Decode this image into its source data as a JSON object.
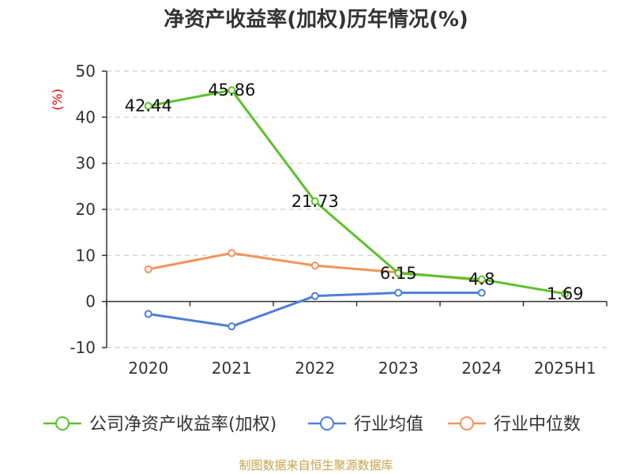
{
  "chart_data": {
    "type": "line",
    "title": "净资产收益率(加权)历年情况(%)",
    "ylabel": "(%)",
    "categories": [
      "2020",
      "2021",
      "2022",
      "2023",
      "2024",
      "2025H1"
    ],
    "ylim": [
      -10,
      50
    ],
    "yticks": [
      -10,
      0,
      10,
      20,
      30,
      40,
      50
    ],
    "grid": true,
    "legend_position": "bottom",
    "series": [
      {
        "name": "公司净资产收益率(加权)",
        "color": "#5cc12a",
        "values": [
          42.44,
          45.86,
          21.73,
          6.15,
          4.8,
          1.69
        ],
        "labels": [
          "42.44",
          "45.86",
          "21.73",
          "6.15",
          "4.8",
          "1.69"
        ]
      },
      {
        "name": "行业均值",
        "color": "#4d7fd9",
        "values": [
          -2.7,
          -5.4,
          1.2,
          1.9,
          1.9,
          null
        ]
      },
      {
        "name": "行业中位数",
        "color": "#f4925a",
        "values": [
          7.0,
          10.5,
          7.8,
          6.3,
          4.6,
          null
        ]
      }
    ]
  },
  "source": "制图数据来自恒生聚源数据库"
}
